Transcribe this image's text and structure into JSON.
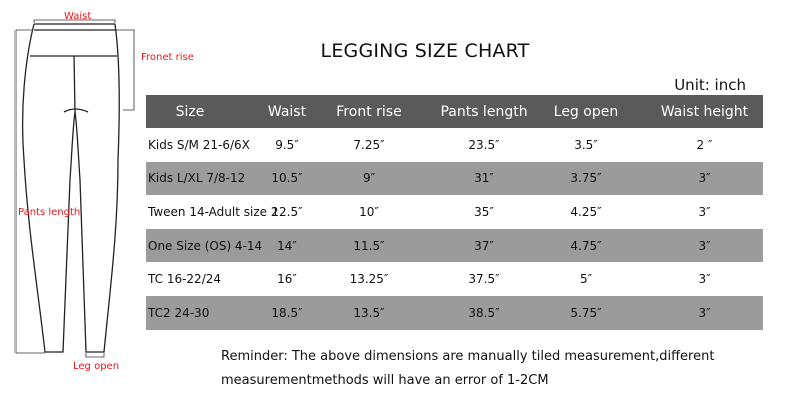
{
  "diagram_labels": {
    "waist": "Waist",
    "front_rise": "Fronet rise",
    "pants_length": "Pants length",
    "leg_open": "Leg open"
  },
  "title": "LEGGING SIZE CHART",
  "unit": "Unit: inch",
  "table": {
    "headers": [
      "Size",
      "Waist",
      "Front rise",
      "Pants length",
      "Leg open",
      "Waist height"
    ],
    "rows": [
      [
        "Kids S/M 21-6/6X",
        "9.5″",
        "7.25″",
        "23.5″",
        "3.5″",
        "2 ″"
      ],
      [
        "Kids L/XL 7/8-12",
        "10.5″",
        "9″",
        "31″",
        "3.75″",
        "3″"
      ],
      [
        "Tween 14-Adult size 2",
        "12.5″",
        "10″",
        "35″",
        "4.25″",
        "3″"
      ],
      [
        "One Size  (OS)   4-14",
        "14″",
        "11.5″",
        "37″",
        "4.75″",
        "3″"
      ],
      [
        "TC 16-22/24",
        "16″",
        "13.25″",
        "37.5″",
        "5″",
        "3″"
      ],
      [
        "TC2 24-30",
        "18.5″",
        "13.5″",
        "38.5″",
        "5.75″",
        "3″"
      ]
    ]
  },
  "reminder": [
    "Reminder: The above dimensions are manually tiled measurement,different",
    "measurementmethods will have an error of 1-2CM"
  ],
  "colors": {
    "header_bg": "#5a5a5a",
    "stripe_bg": "#9b9b9b",
    "label_red": "#e8141b"
  }
}
